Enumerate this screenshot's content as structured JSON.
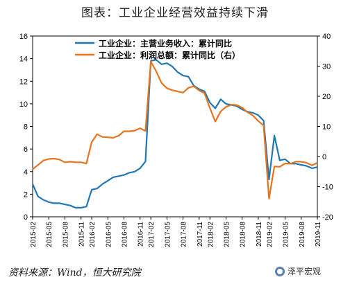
{
  "title": "图表：工业企业经营效益持续下滑",
  "footer": {
    "source": "资料来源：Wind，恒大研究院",
    "watermark": "泽平宏观"
  },
  "colors": {
    "series_left": "#1f77b4",
    "series_right": "#e8731c"
  },
  "chart_data": {
    "type": "line",
    "categories": [
      "2015-02",
      "2015-03",
      "2015-04",
      "2015-05",
      "2015-06",
      "2015-07",
      "2015-08",
      "2015-09",
      "2015-10",
      "2015-11",
      "2015-12",
      "2016-02",
      "2016-03",
      "2016-04",
      "2016-05",
      "2016-06",
      "2016-07",
      "2016-08",
      "2016-09",
      "2016-10",
      "2016-11",
      "2016-12",
      "2017-02",
      "2017-03",
      "2017-04",
      "2017-05",
      "2017-06",
      "2017-07",
      "2017-08",
      "2017-09",
      "2017-10",
      "2017-11",
      "2017-12",
      "2018-02",
      "2018-03",
      "2018-04",
      "2018-05",
      "2018-06",
      "2018-07",
      "2018-08",
      "2018-09",
      "2018-10",
      "2018-11",
      "2018-12",
      "2019-02",
      "2019-03",
      "2019-04",
      "2019-05",
      "2019-06",
      "2019-07",
      "2019-08",
      "2019-09",
      "2019-10",
      "2019-11"
    ],
    "x_tick_labels": [
      "2015-02",
      "2015-05",
      "2015-08",
      "2015-11",
      "2016-02",
      "2016-05",
      "2016-08",
      "2016-11",
      "2017-02",
      "2017-05",
      "2017-08",
      "2017-11",
      "2018-02",
      "2018-05",
      "2018-08",
      "2018-11",
      "2019-02",
      "2019-05",
      "2019-08",
      "2019-11"
    ],
    "y_left": {
      "lim": [
        0,
        16
      ],
      "ticks": [
        0,
        2,
        4,
        6,
        8,
        10,
        12,
        14,
        16
      ]
    },
    "y_right": {
      "lim": [
        -20,
        40
      ],
      "ticks": [
        -20,
        -10,
        0,
        10,
        20,
        30,
        40
      ]
    },
    "grid": false,
    "legend_position": "top",
    "series": [
      {
        "name": "工业企业：主营业务收入：累计同比",
        "axis": "left",
        "values": [
          2.9,
          1.8,
          1.5,
          1.3,
          1.2,
          1.2,
          1.1,
          1.0,
          0.8,
          0.8,
          0.9,
          2.4,
          2.5,
          2.9,
          3.2,
          3.5,
          3.6,
          3.7,
          3.9,
          4.0,
          4.3,
          4.9,
          13.8,
          13.9,
          13.5,
          13.6,
          13.3,
          12.8,
          12.5,
          12.4,
          11.6,
          11.3,
          11.1,
          10.1,
          9.6,
          10.4,
          10.0,
          9.9,
          9.8,
          9.5,
          9.3,
          9.2,
          9.0,
          8.5,
          3.3,
          7.2,
          5.0,
          5.1,
          4.7,
          4.7,
          4.6,
          4.5,
          4.3,
          4.4
        ]
      },
      {
        "name": "工业企业：利润总额：累计同比（右）",
        "axis": "right",
        "values": [
          -4.2,
          -2.8,
          -1.3,
          -0.8,
          -0.7,
          -1.0,
          -1.9,
          -1.7,
          -1.9,
          -1.9,
          -2.3,
          4.8,
          7.4,
          6.5,
          6.4,
          6.2,
          6.9,
          8.4,
          8.4,
          8.6,
          9.4,
          8.5,
          31.5,
          28.3,
          24.4,
          22.7,
          22.0,
          21.6,
          21.2,
          22.8,
          23.3,
          21.9,
          21.0,
          16.1,
          11.6,
          15.0,
          16.5,
          17.2,
          17.1,
          16.2,
          14.7,
          13.6,
          11.8,
          10.3,
          -14.0,
          -3.3,
          -3.4,
          -2.3,
          -2.4,
          -1.7,
          -1.7,
          -2.1,
          -2.9,
          -2.1
        ]
      }
    ]
  }
}
